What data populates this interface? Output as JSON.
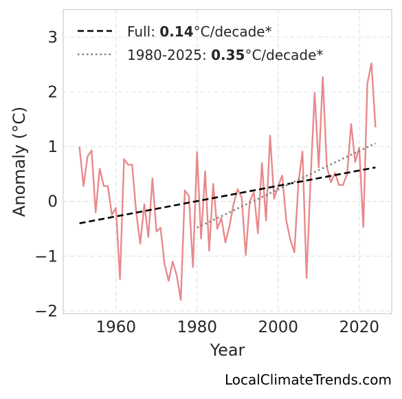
{
  "chart_data": {
    "type": "line",
    "xlabel": "Year",
    "ylabel": "Anomaly (°C)",
    "xlim": [
      1947,
      2028
    ],
    "ylim": [
      -2.05,
      3.5
    ],
    "xticks": [
      1960,
      1980,
      2000,
      2020
    ],
    "xtick_labels": [
      "1960",
      "1980",
      "2000",
      "2020"
    ],
    "yticks": [
      -2,
      -1,
      0,
      1,
      2,
      3
    ],
    "ytick_labels": [
      "−2",
      "−1",
      "0",
      "1",
      "2",
      "3"
    ],
    "grid": true,
    "legend_position": "top-left",
    "series": [
      {
        "style": "solid",
        "color": "#e8898b",
        "x": [
          1951,
          1952,
          1953,
          1954,
          1955,
          1956,
          1957,
          1958,
          1959,
          1960,
          1961,
          1962,
          1963,
          1964,
          1965,
          1966,
          1967,
          1968,
          1969,
          1970,
          1971,
          1972,
          1973,
          1974,
          1975,
          1976,
          1977,
          1978,
          1979,
          1980,
          1981,
          1982,
          1983,
          1984,
          1985,
          1986,
          1987,
          1988,
          1989,
          1990,
          1991,
          1992,
          1993,
          1994,
          1995,
          1996,
          1997,
          1998,
          1999,
          2000,
          2001,
          2002,
          2003,
          2004,
          2005,
          2006,
          2007,
          2008,
          2009,
          2010,
          2011,
          2012,
          2013,
          2014,
          2015,
          2016,
          2017,
          2018,
          2019,
          2020,
          2021,
          2022,
          2023,
          2024
        ],
        "values": [
          1.0,
          0.28,
          0.82,
          0.93,
          -0.2,
          0.6,
          0.28,
          0.28,
          -0.25,
          -0.12,
          -1.42,
          0.77,
          0.67,
          0.67,
          -0.2,
          -0.77,
          -0.05,
          -0.65,
          0.42,
          -0.55,
          -0.48,
          -1.15,
          -1.45,
          -1.1,
          -1.35,
          -1.8,
          0.2,
          0.1,
          -1.2,
          0.9,
          -0.68,
          0.55,
          -0.9,
          0.32,
          -0.5,
          -0.3,
          -0.75,
          -0.45,
          -0.05,
          0.22,
          0.07,
          -0.98,
          0.0,
          0.17,
          -0.58,
          0.7,
          -0.35,
          1.2,
          0.05,
          0.28,
          0.47,
          -0.35,
          -0.7,
          -0.93,
          0.35,
          0.91,
          -1.4,
          0.42,
          1.98,
          0.62,
          2.27,
          0.63,
          0.35,
          0.52,
          0.3,
          0.3,
          0.5,
          1.41,
          0.72,
          0.98,
          -0.47,
          2.15,
          2.52,
          1.35
        ]
      },
      {
        "name": "Full: 0.14°C/decade*",
        "style": "dashed",
        "color": "#000000",
        "x": [
          1951,
          2024
        ],
        "values": [
          -0.4,
          0.62
        ]
      },
      {
        "name": "1980-2025: 0.35°C/decade*",
        "style": "dotted",
        "color": "#808080",
        "x": [
          1980,
          2024
        ],
        "values": [
          -0.48,
          1.06
        ]
      }
    ],
    "legend": [
      {
        "prefix": "Full: ",
        "value": "0.14",
        "suffix": "°C/decade*"
      },
      {
        "prefix": "1980-2025: ",
        "value": "0.35",
        "suffix": "°C/decade*"
      }
    ]
  },
  "footer": {
    "source": "LocalClimateTrends.com"
  }
}
